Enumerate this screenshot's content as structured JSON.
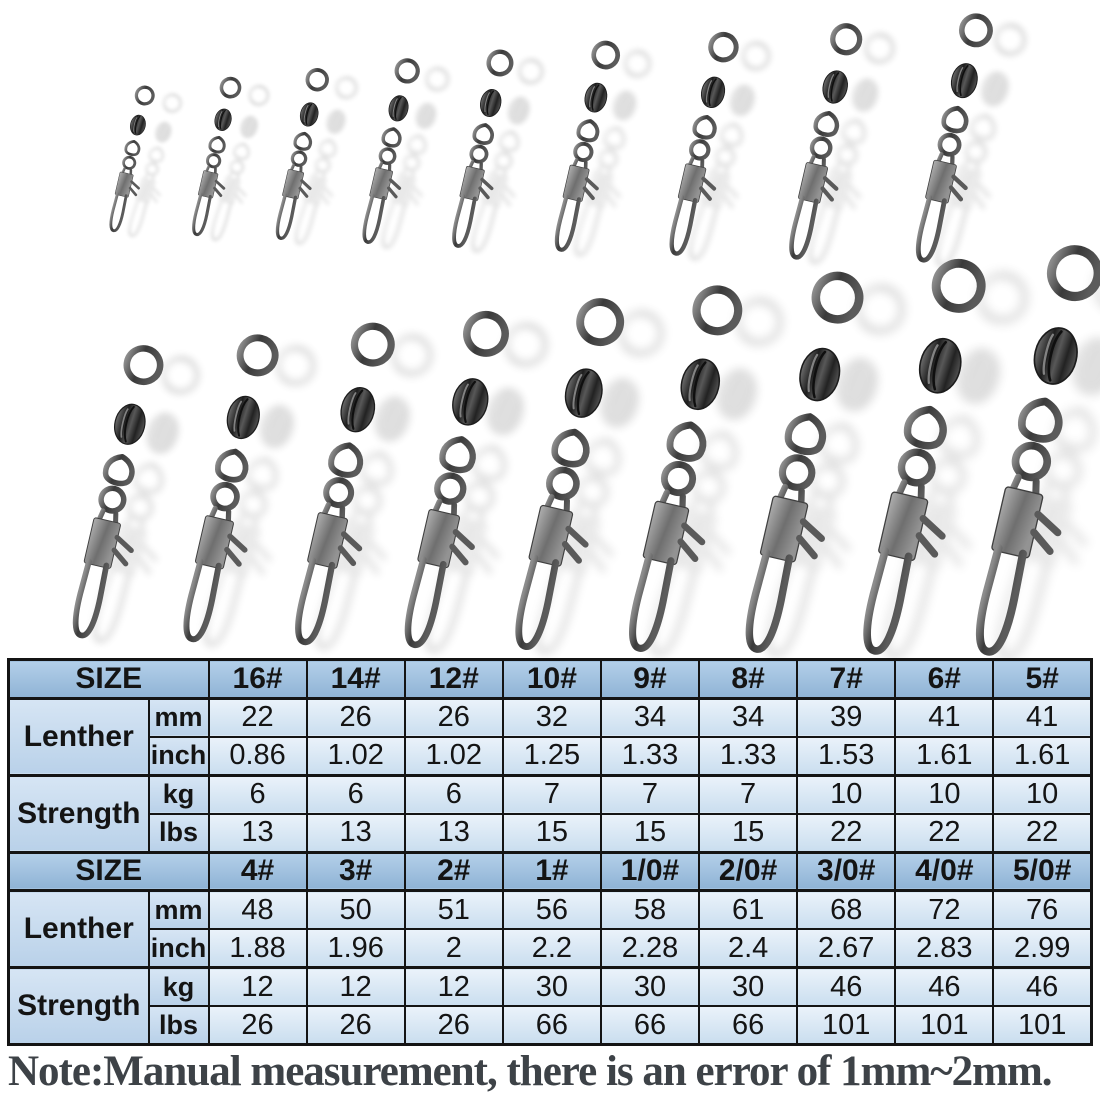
{
  "illustrations": {
    "alt": "fishing barrel swivels with interlock snaps, two rows, sizes increasing left to right",
    "row1_count": 9,
    "row2_count": 9
  },
  "table": {
    "sections": [
      {
        "size_label": "SIZE",
        "sizes": [
          "16#",
          "14#",
          "12#",
          "10#",
          "9#",
          "8#",
          "7#",
          "6#",
          "5#"
        ],
        "lenther_mm": [
          "22",
          "26",
          "26",
          "32",
          "34",
          "34",
          "39",
          "41",
          "41"
        ],
        "lenther_inch": [
          "0.86",
          "1.02",
          "1.02",
          "1.25",
          "1.33",
          "1.33",
          "1.53",
          "1.61",
          "1.61"
        ],
        "strength_kg": [
          "6",
          "6",
          "6",
          "7",
          "7",
          "7",
          "10",
          "10",
          "10"
        ],
        "strength_lbs": [
          "13",
          "13",
          "13",
          "15",
          "15",
          "15",
          "22",
          "22",
          "22"
        ]
      },
      {
        "size_label": "SIZE",
        "sizes": [
          "4#",
          "3#",
          "2#",
          "1#",
          "1/0#",
          "2/0#",
          "3/0#",
          "4/0#",
          "5/0#"
        ],
        "lenther_mm": [
          "48",
          "50",
          "51",
          "56",
          "58",
          "61",
          "68",
          "72",
          "76"
        ],
        "lenther_inch": [
          "1.88",
          "1.96",
          "2",
          "2.2",
          "2.28",
          "2.4",
          "2.67",
          "2.83",
          "2.99"
        ],
        "strength_kg": [
          "12",
          "12",
          "12",
          "30",
          "30",
          "30",
          "46",
          "46",
          "46"
        ],
        "strength_lbs": [
          "26",
          "26",
          "26",
          "66",
          "66",
          "66",
          "101",
          "101",
          "101"
        ]
      }
    ],
    "group_labels": {
      "lenther": "Lenther",
      "strength": "Strength"
    },
    "unit_labels": {
      "mm": "mm",
      "inch": "inch",
      "kg": "kg",
      "lbs": "lbs"
    }
  },
  "note": "Note:Manual measurement, there is an error of 1mm~2mm.",
  "colors": {
    "header_blue_top": "#b3cfe9",
    "header_blue_bottom": "#8fb3d5",
    "label_blue_top": "#d6e5f4",
    "label_blue_bottom": "#b9d1e9",
    "cell_blue_top": "#eaf2fa",
    "cell_blue_bottom": "#cadeef",
    "table_border": "#141414",
    "note_text": "#3d4247",
    "metal_dark": "#2e2e2e",
    "metal_light": "#9a9a9a"
  }
}
